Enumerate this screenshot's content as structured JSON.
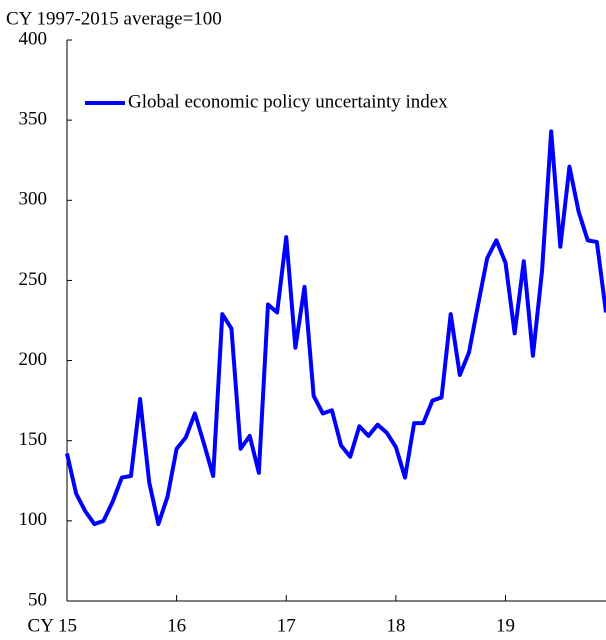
{
  "chart_data": {
    "type": "line",
    "title": "CY 1997-2015 average=100",
    "categories": [
      "CY 15",
      null,
      null,
      null,
      null,
      null,
      null,
      null,
      null,
      null,
      null,
      null,
      "16",
      null,
      null,
      null,
      null,
      null,
      null,
      null,
      null,
      null,
      null,
      null,
      "17",
      null,
      null,
      null,
      null,
      null,
      null,
      null,
      null,
      null,
      null,
      null,
      "18",
      null,
      null,
      null,
      null,
      null,
      null,
      null,
      null,
      null,
      null,
      null,
      "19",
      null,
      null,
      null,
      null,
      null,
      null,
      null,
      null,
      null,
      null,
      null
    ],
    "series": [
      {
        "name": "Global economic policy uncertainty index",
        "color": "#0000ff",
        "values": [
          142,
          117,
          106,
          98,
          100,
          112,
          127,
          128,
          176,
          124,
          98,
          115,
          145,
          152,
          167,
          148,
          128,
          229,
          220,
          145,
          153,
          130,
          235,
          230,
          277,
          208,
          246,
          178,
          167,
          169,
          147,
          140,
          159,
          153,
          160,
          155,
          146,
          127,
          161,
          161,
          175,
          177,
          229,
          191,
          205,
          235,
          264,
          275,
          261,
          217,
          262,
          203,
          256,
          343,
          271,
          321,
          293,
          275,
          274,
          230
        ]
      }
    ],
    "ylim": [
      50,
      400
    ],
    "yticks": [
      50,
      100,
      150,
      200,
      250,
      300,
      350,
      400
    ],
    "legend": "upper left",
    "grid": false
  }
}
